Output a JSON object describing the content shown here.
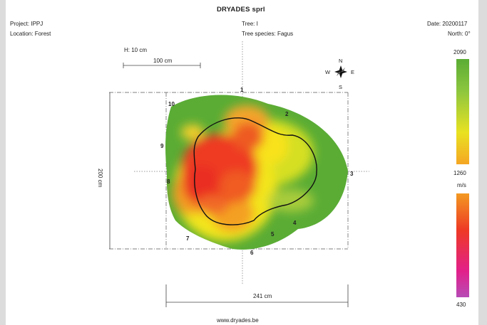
{
  "header": {
    "company": "DRYADES sprl",
    "project": "Project: IPPJ",
    "location": "Location: Forest",
    "tree": "Tree: I",
    "species": "Tree species: Fagus",
    "date": "Date: 20200117",
    "north": "North: 0°"
  },
  "scale": {
    "height": "H: 10 cm",
    "bar": "100 cm",
    "vertical": "200 cm",
    "horizontal": "241 cm"
  },
  "compass": {
    "n": "N",
    "s": "S",
    "e": "E",
    "w": "W"
  },
  "measurement_points": [
    "1",
    "2",
    "3",
    "4",
    "5",
    "6",
    "7",
    "8",
    "9",
    "10"
  ],
  "legend": {
    "top_value": "2090",
    "mid_value": "1260",
    "unit": "m/s",
    "bottom_value": "430",
    "colors": [
      "#5aac35",
      "#e9e221",
      "#f09a22",
      "#ee3a24",
      "#e2208a",
      "#b74bb6"
    ]
  },
  "footer": {
    "url": "www.dryades.be"
  }
}
